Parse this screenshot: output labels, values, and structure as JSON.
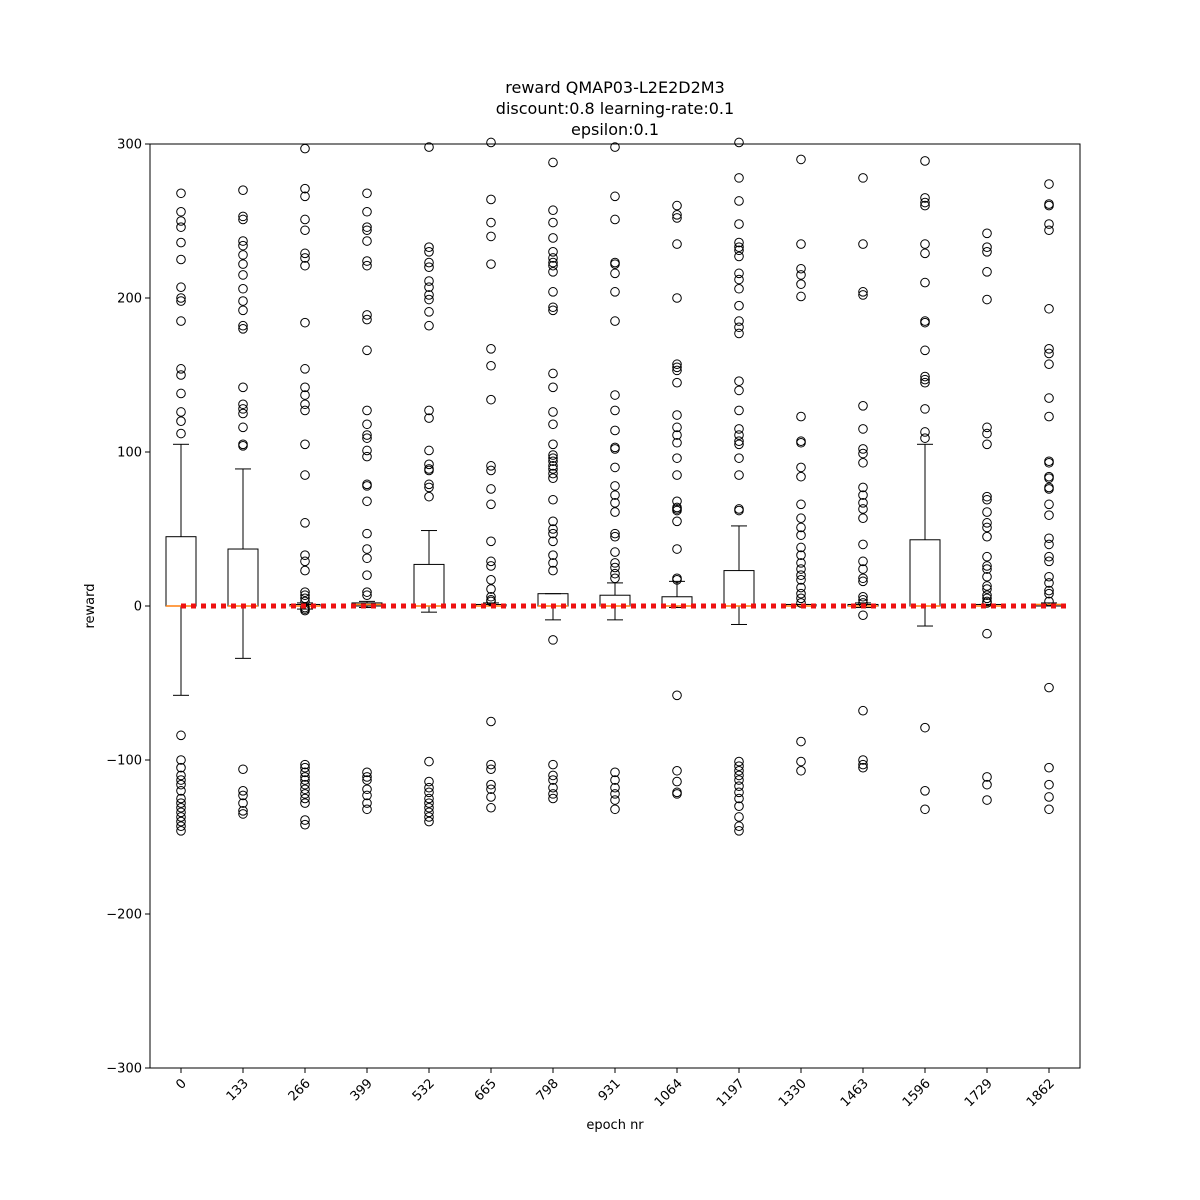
{
  "chart_data": {
    "type": "box",
    "title_lines": [
      "reward QMAP03-L2E2D2M3",
      "discount:0.8 learning-rate:0.1",
      "epsilon:0.1"
    ],
    "xlabel": "epoch nr",
    "ylabel": "reward",
    "ylim": [
      -300,
      300
    ],
    "yticks": [
      -300,
      -200,
      -100,
      0,
      100,
      200,
      300
    ],
    "categories": [
      "0",
      "133",
      "266",
      "399",
      "532",
      "665",
      "798",
      "931",
      "1064",
      "1197",
      "1330",
      "1463",
      "1596",
      "1729",
      "1862"
    ],
    "reference_line": {
      "y": 0,
      "color": "#ee1111",
      "style": "dotted"
    },
    "colors": {
      "box": "#000000",
      "median": "#ff7f0e",
      "flier": "#000000"
    },
    "boxes": [
      {
        "category": "0",
        "whisker_low": -58,
        "q1": 0,
        "median": 0,
        "q3": 45,
        "whisker_high": 105,
        "fliers": [
          268,
          256,
          250,
          246,
          236,
          225,
          207,
          200,
          198,
          185,
          154,
          150,
          138,
          126,
          120,
          112,
          -84,
          -100,
          -105,
          -110,
          -113,
          -116,
          -120,
          -125,
          -128,
          -131,
          -134,
          -137,
          -140,
          -143,
          -146
        ]
      },
      {
        "category": "133",
        "whisker_low": -34,
        "q1": 0,
        "median": 0,
        "q3": 37,
        "whisker_high": 89,
        "fliers": [
          270,
          253,
          251,
          237,
          234,
          228,
          222,
          215,
          206,
          198,
          192,
          182,
          180,
          142,
          131,
          128,
          125,
          116,
          105,
          104,
          -106,
          -120,
          -123,
          -128,
          -133,
          -135
        ]
      },
      {
        "category": "266",
        "whisker_low": -2,
        "q1": 0,
        "median": 0,
        "q3": 1,
        "whisker_high": 2,
        "fliers": [
          297,
          271,
          266,
          251,
          244,
          229,
          226,
          221,
          184,
          154,
          142,
          137,
          131,
          127,
          105,
          85,
          54,
          33,
          29,
          23,
          9,
          7,
          5,
          3,
          -1,
          -2,
          -3,
          -103,
          -105,
          -108,
          -111,
          -113,
          -116,
          -119,
          -122,
          -125,
          -128,
          -139,
          -142
        ]
      },
      {
        "category": "399",
        "whisker_low": -1,
        "q1": 0,
        "median": 1,
        "q3": 2,
        "whisker_high": 3,
        "fliers": [
          268,
          256,
          246,
          244,
          237,
          224,
          221,
          189,
          186,
          166,
          127,
          118,
          111,
          109,
          101,
          97,
          79,
          78,
          68,
          47,
          37,
          31,
          20,
          9,
          7,
          -108,
          -111,
          -113,
          -119,
          -123,
          -128,
          -132
        ]
      },
      {
        "category": "532",
        "whisker_low": -4,
        "q1": 0,
        "median": 0,
        "q3": 27,
        "whisker_high": 49,
        "fliers": [
          298,
          233,
          230,
          223,
          220,
          211,
          207,
          202,
          199,
          191,
          182,
          127,
          122,
          101,
          92,
          89,
          88,
          79,
          77,
          71,
          -101,
          -114,
          -118,
          -121,
          -125,
          -128,
          -131,
          -134,
          -137,
          -140
        ]
      },
      {
        "category": "665",
        "whisker_low": 0,
        "q1": 0,
        "median": 0,
        "q3": 1,
        "whisker_high": 2,
        "fliers": [
          301,
          264,
          249,
          240,
          222,
          167,
          156,
          134,
          91,
          88,
          76,
          66,
          42,
          29,
          26,
          17,
          11,
          6,
          4,
          3,
          -75,
          -103,
          -106,
          -116,
          -119,
          -124,
          -131
        ]
      },
      {
        "category": "798",
        "whisker_low": -9,
        "q1": 0,
        "median": 0,
        "q3": 8,
        "whisker_high": 8,
        "fliers": [
          288,
          257,
          249,
          239,
          230,
          226,
          223,
          221,
          217,
          204,
          194,
          192,
          151,
          142,
          126,
          118,
          105,
          98,
          96,
          94,
          91,
          89,
          86,
          83,
          69,
          55,
          50,
          47,
          42,
          33,
          28,
          23,
          -22,
          -103,
          -110,
          -113,
          -118,
          -122,
          -125
        ]
      },
      {
        "category": "931",
        "whisker_low": -9,
        "q1": 0,
        "median": 0,
        "q3": 7,
        "whisker_high": 15,
        "fliers": [
          298,
          266,
          251,
          223,
          222,
          216,
          204,
          185,
          137,
          127,
          114,
          103,
          102,
          90,
          78,
          72,
          67,
          61,
          47,
          45,
          35,
          28,
          25,
          21,
          18,
          -108,
          -113,
          -118,
          -122,
          -126,
          -132
        ]
      },
      {
        "category": "1064",
        "whisker_low": -1,
        "q1": 0,
        "median": 0,
        "q3": 6,
        "whisker_high": 16,
        "fliers": [
          260,
          254,
          252,
          235,
          200,
          157,
          155,
          153,
          145,
          124,
          116,
          111,
          106,
          96,
          85,
          68,
          64,
          63,
          62,
          55,
          37,
          18,
          17,
          -58,
          -107,
          -114,
          -121,
          -122
        ]
      },
      {
        "category": "1197",
        "whisker_low": -12,
        "q1": 0,
        "median": 0,
        "q3": 23,
        "whisker_high": 52,
        "fliers": [
          301,
          278,
          263,
          248,
          236,
          233,
          231,
          227,
          216,
          212,
          206,
          195,
          185,
          181,
          177,
          146,
          140,
          127,
          115,
          111,
          107,
          105,
          96,
          85,
          63,
          62,
          -101,
          -104,
          -107,
          -110,
          -113,
          -117,
          -121,
          -125,
          -130,
          -137,
          -143,
          -146
        ]
      },
      {
        "category": "1330",
        "whisker_low": 0,
        "q1": 0,
        "median": 0,
        "q3": 1,
        "whisker_high": 1,
        "fliers": [
          290,
          235,
          219,
          215,
          209,
          201,
          123,
          107,
          106,
          90,
          84,
          66,
          57,
          51,
          46,
          38,
          33,
          28,
          24,
          20,
          17,
          12,
          8,
          5,
          2,
          -88,
          -101,
          -107
        ]
      },
      {
        "category": "1463",
        "whisker_low": -1,
        "q1": 0,
        "median": 0,
        "q3": 1,
        "whisker_high": 2,
        "fliers": [
          278,
          235,
          204,
          202,
          130,
          115,
          102,
          99,
          93,
          77,
          72,
          67,
          63,
          57,
          40,
          29,
          24,
          18,
          16,
          6,
          4,
          2,
          -6,
          -68,
          -100,
          -103,
          -105
        ]
      },
      {
        "category": "1596",
        "whisker_low": -13,
        "q1": 0,
        "median": 0,
        "q3": 43,
        "whisker_high": 105,
        "fliers": [
          289,
          265,
          262,
          260,
          235,
          229,
          210,
          185,
          184,
          166,
          149,
          147,
          145,
          128,
          113,
          109,
          -79,
          -120,
          -132
        ]
      },
      {
        "category": "1729",
        "whisker_low": 0,
        "q1": 0,
        "median": 0,
        "q3": 1,
        "whisker_high": 1,
        "fliers": [
          242,
          233,
          230,
          217,
          199,
          116,
          112,
          105,
          71,
          69,
          61,
          54,
          51,
          45,
          32,
          26,
          24,
          19,
          13,
          11,
          7,
          5,
          3,
          2,
          -18,
          -111,
          -116,
          -126
        ]
      },
      {
        "category": "1862",
        "whisker_low": 0,
        "q1": 0,
        "median": 1,
        "q3": 1,
        "whisker_high": 2,
        "fliers": [
          274,
          261,
          260,
          248,
          244,
          193,
          167,
          164,
          157,
          135,
          123,
          94,
          93,
          84,
          83,
          77,
          76,
          66,
          59,
          44,
          40,
          32,
          29,
          19,
          15,
          10,
          8,
          3,
          -53,
          -105,
          -116,
          -124,
          -132
        ]
      }
    ]
  }
}
